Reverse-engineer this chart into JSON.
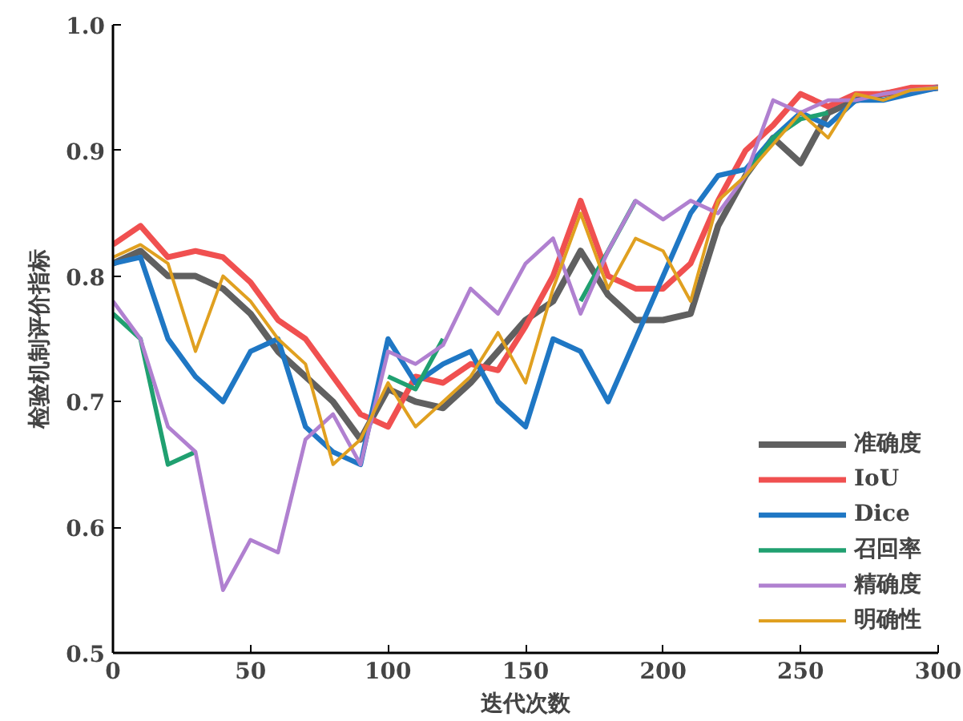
{
  "chart_data": {
    "type": "line",
    "xlabel": "迭代次数",
    "ylabel": "检验机制评价指标",
    "x": [
      0,
      10,
      20,
      30,
      40,
      50,
      60,
      70,
      80,
      90,
      100,
      110,
      120,
      130,
      140,
      150,
      160,
      170,
      180,
      190,
      200,
      210,
      220,
      230,
      240,
      250,
      260,
      270,
      280,
      290,
      300
    ],
    "series": [
      {
        "name": "准确度",
        "color": "#606060",
        "values": [
          0.81,
          0.82,
          0.8,
          0.8,
          0.79,
          0.77,
          0.74,
          0.72,
          0.7,
          0.67,
          0.71,
          0.7,
          0.695,
          0.715,
          0.74,
          0.765,
          0.78,
          0.82,
          0.785,
          0.765,
          0.765,
          0.77,
          0.84,
          0.88,
          0.91,
          0.89,
          0.93,
          0.94,
          0.945,
          0.948,
          0.95
        ]
      },
      {
        "name": "IoU",
        "color": "#f05050",
        "values": [
          0.825,
          0.84,
          0.815,
          0.82,
          0.815,
          0.795,
          0.765,
          0.75,
          0.72,
          0.69,
          0.68,
          0.72,
          0.715,
          0.73,
          0.725,
          0.76,
          0.8,
          0.86,
          0.8,
          0.79,
          0.79,
          0.81,
          0.86,
          0.9,
          0.92,
          0.945,
          0.935,
          0.945,
          0.945,
          0.95,
          0.95
        ]
      },
      {
        "name": "Dice",
        "color": "#1f77c4",
        "values": [
          0.81,
          0.815,
          0.75,
          0.72,
          0.7,
          0.74,
          0.75,
          0.68,
          0.66,
          0.65,
          0.75,
          0.715,
          0.73,
          0.74,
          0.7,
          0.68,
          0.75,
          0.74,
          0.7,
          0.75,
          0.8,
          0.85,
          0.88,
          0.885,
          0.91,
          0.93,
          0.92,
          0.94,
          0.94,
          0.945,
          0.95
        ]
      },
      {
        "name": "召回率",
        "color": "#20a070",
        "values": [
          0.77,
          0.75,
          0.65,
          0.66,
          null,
          null,
          null,
          null,
          null,
          null,
          0.72,
          0.71,
          0.75,
          null,
          null,
          null,
          null,
          0.78,
          0.82,
          0.86,
          null,
          null,
          null,
          0.88,
          0.91,
          0.925,
          0.93,
          null,
          null,
          null,
          null
        ]
      },
      {
        "name": "精确度",
        "color": "#b080d0",
        "values": [
          0.78,
          0.75,
          0.68,
          0.66,
          0.55,
          0.59,
          0.58,
          0.67,
          0.69,
          0.65,
          0.74,
          0.73,
          0.745,
          0.79,
          0.77,
          0.81,
          0.83,
          0.77,
          0.82,
          0.86,
          0.845,
          0.86,
          0.85,
          0.88,
          0.94,
          0.93,
          0.94,
          0.94,
          0.945,
          0.948,
          0.95
        ]
      },
      {
        "name": "明确性",
        "color": "#e0a020",
        "values": [
          0.815,
          0.825,
          0.81,
          0.74,
          0.8,
          0.78,
          0.75,
          0.73,
          0.65,
          0.67,
          0.715,
          0.68,
          0.7,
          0.72,
          0.755,
          0.715,
          0.79,
          0.85,
          0.79,
          0.83,
          0.82,
          0.78,
          0.86,
          0.88,
          0.905,
          0.93,
          0.91,
          0.945,
          0.94,
          0.948,
          0.95
        ]
      }
    ],
    "xlim": [
      0,
      300
    ],
    "xticks": [
      0,
      50,
      100,
      150,
      200,
      250,
      300
    ],
    "ylim": [
      0.5,
      1.0
    ],
    "yticks": [
      {
        "value": 0.5,
        "label": "0.5"
      },
      {
        "value": 0.6,
        "label": "0.6"
      },
      {
        "value": 0.7,
        "label": "0.7"
      },
      {
        "value": 0.8,
        "label": "0.8"
      },
      {
        "value": 0.9,
        "label": "0.9"
      },
      {
        "value": 1.0,
        "label": "1.0"
      }
    ],
    "grid": false,
    "legend": "bottom right",
    "marker": "none",
    "line_style": "solid"
  }
}
